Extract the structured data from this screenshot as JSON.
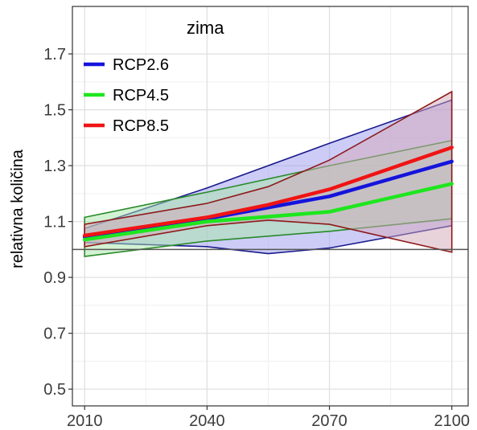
{
  "chart_data": {
    "type": "area",
    "title": "zima",
    "xlabel": "",
    "ylabel": "relativna količina",
    "xlim": [
      2007,
      2104
    ],
    "ylim": [
      0.44,
      1.87
    ],
    "x_ticks": [
      "2010",
      "2040",
      "2070",
      "2100"
    ],
    "x_tick_values": [
      2010,
      2040,
      2070,
      2100
    ],
    "y_ticks": [
      "0.5",
      "0.7",
      "0.9",
      "1.1",
      "1.3",
      "1.5",
      "1.7"
    ],
    "y_tick_values": [
      0.5,
      0.7,
      0.9,
      1.1,
      1.3,
      1.5,
      1.7
    ],
    "grid": true,
    "reference_line": 1.0,
    "legend_position": "top-left",
    "series": [
      {
        "name": "RCP2.6",
        "color": "#1414dc",
        "band_color": "#1a1a8c",
        "band_fill": "#9a9af0",
        "x": [
          2010,
          2040,
          2070,
          2100
        ],
        "values": [
          1.045,
          1.11,
          1.19,
          1.315
        ],
        "upper": {
          "x": [
            2010,
            2040,
            2070,
            2100
          ],
          "values": [
            1.075,
            1.22,
            1.38,
            1.535
          ]
        },
        "lower": {
          "x": [
            2010,
            2040,
            2055,
            2070,
            2100
          ],
          "values": [
            1.025,
            1.01,
            0.985,
            1.005,
            1.085
          ]
        }
      },
      {
        "name": "RCP4.5",
        "color": "#1ee61e",
        "band_color": "#2a8a2a",
        "band_fill": "#a8e6a8",
        "x": [
          2010,
          2040,
          2070,
          2100
        ],
        "values": [
          1.035,
          1.1,
          1.135,
          1.235
        ],
        "upper": {
          "x": [
            2010,
            2040,
            2070,
            2100
          ],
          "values": [
            1.115,
            1.205,
            1.3,
            1.39
          ]
        },
        "lower": {
          "x": [
            2010,
            2040,
            2070,
            2100
          ],
          "values": [
            0.975,
            1.03,
            1.065,
            1.11
          ]
        }
      },
      {
        "name": "RCP8.5",
        "color": "#f01414",
        "band_color": "#8c1a1a",
        "band_fill": "#d4a8b8",
        "x": [
          2010,
          2040,
          2055,
          2070,
          2100
        ],
        "values": [
          1.05,
          1.115,
          1.16,
          1.215,
          1.365
        ],
        "upper": {
          "x": [
            2010,
            2040,
            2055,
            2070,
            2100
          ],
          "values": [
            1.09,
            1.165,
            1.225,
            1.32,
            1.565
          ]
        },
        "lower": {
          "x": [
            2010,
            2040,
            2055,
            2070,
            2100
          ],
          "values": [
            1.01,
            1.085,
            1.105,
            1.09,
            0.99
          ]
        }
      }
    ]
  }
}
